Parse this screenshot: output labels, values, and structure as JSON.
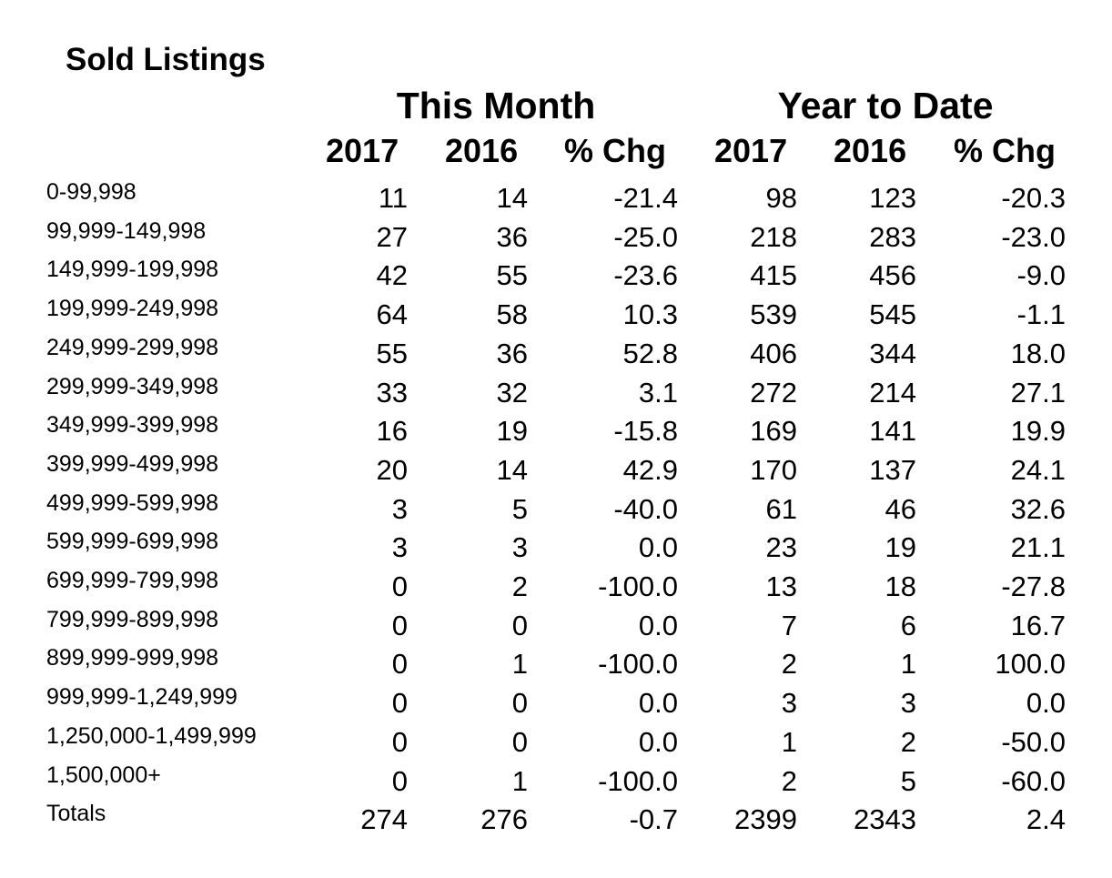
{
  "title": "Sold Listings",
  "groups": {
    "this_month": "This Month",
    "year_to_date": "Year to Date"
  },
  "columns": {
    "month_2017": "2017",
    "month_2016": "2016",
    "month_pct": "% Chg",
    "ytd_2017": "2017",
    "ytd_2016": "2016",
    "ytd_pct": "% Chg"
  },
  "rows": [
    {
      "label": "0-99,998",
      "m2017": "11",
      "m2016": "14",
      "mpct": "-21.4",
      "y2017": "98",
      "y2016": "123",
      "ypct": "-20.3"
    },
    {
      "label": "99,999-149,998",
      "m2017": "27",
      "m2016": "36",
      "mpct": "-25.0",
      "y2017": "218",
      "y2016": "283",
      "ypct": "-23.0"
    },
    {
      "label": "149,999-199,998",
      "m2017": "42",
      "m2016": "55",
      "mpct": "-23.6",
      "y2017": "415",
      "y2016": "456",
      "ypct": "-9.0"
    },
    {
      "label": "199,999-249,998",
      "m2017": "64",
      "m2016": "58",
      "mpct": "10.3",
      "y2017": "539",
      "y2016": "545",
      "ypct": "-1.1"
    },
    {
      "label": "249,999-299,998",
      "m2017": "55",
      "m2016": "36",
      "mpct": "52.8",
      "y2017": "406",
      "y2016": "344",
      "ypct": "18.0"
    },
    {
      "label": "299,999-349,998",
      "m2017": "33",
      "m2016": "32",
      "mpct": "3.1",
      "y2017": "272",
      "y2016": "214",
      "ypct": "27.1"
    },
    {
      "label": "349,999-399,998",
      "m2017": "16",
      "m2016": "19",
      "mpct": "-15.8",
      "y2017": "169",
      "y2016": "141",
      "ypct": "19.9"
    },
    {
      "label": "399,999-499,998",
      "m2017": "20",
      "m2016": "14",
      "mpct": "42.9",
      "y2017": "170",
      "y2016": "137",
      "ypct": "24.1"
    },
    {
      "label": "499,999-599,998",
      "m2017": "3",
      "m2016": "5",
      "mpct": "-40.0",
      "y2017": "61",
      "y2016": "46",
      "ypct": "32.6"
    },
    {
      "label": "599,999-699,998",
      "m2017": "3",
      "m2016": "3",
      "mpct": "0.0",
      "y2017": "23",
      "y2016": "19",
      "ypct": "21.1"
    },
    {
      "label": "699,999-799,998",
      "m2017": "0",
      "m2016": "2",
      "mpct": "-100.0",
      "y2017": "13",
      "y2016": "18",
      "ypct": "-27.8"
    },
    {
      "label": "799,999-899,998",
      "m2017": "0",
      "m2016": "0",
      "mpct": "0.0",
      "y2017": "7",
      "y2016": "6",
      "ypct": "16.7"
    },
    {
      "label": "899,999-999,998",
      "m2017": "0",
      "m2016": "1",
      "mpct": "-100.0",
      "y2017": "2",
      "y2016": "1",
      "ypct": "100.0"
    },
    {
      "label": "999,999-1,249,999",
      "m2017": "0",
      "m2016": "0",
      "mpct": "0.0",
      "y2017": "3",
      "y2016": "3",
      "ypct": "0.0"
    },
    {
      "label": "1,250,000-1,499,999",
      "m2017": "0",
      "m2016": "0",
      "mpct": "0.0",
      "y2017": "1",
      "y2016": "2",
      "ypct": "-50.0"
    },
    {
      "label": "1,500,000+",
      "m2017": "0",
      "m2016": "1",
      "mpct": "-100.0",
      "y2017": "2",
      "y2016": "5",
      "ypct": "-60.0"
    },
    {
      "label": "Totals",
      "m2017": "274",
      "m2016": "276",
      "mpct": "-0.7",
      "y2017": "2399",
      "y2016": "2343",
      "ypct": "2.4"
    }
  ]
}
